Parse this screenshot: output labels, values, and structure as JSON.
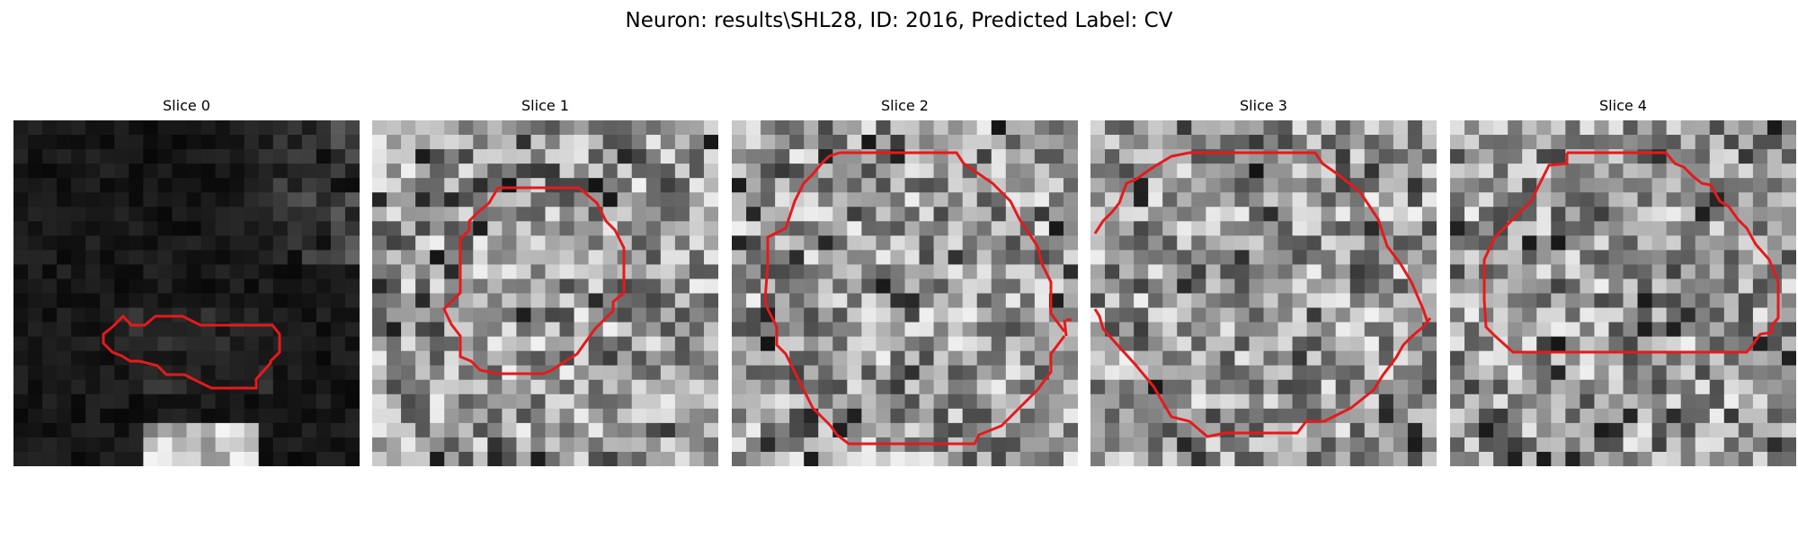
{
  "figure": {
    "title": "Neuron: results\\SHL28, ID: 2016, Predicted Label: CV"
  },
  "slices": [
    {
      "title": "Slice 0",
      "texture": "dark",
      "contour": "small-blob"
    },
    {
      "title": "Slice 1",
      "texture": "gray",
      "contour": "octagon"
    },
    {
      "title": "Slice 2",
      "texture": "gray",
      "contour": "octagon"
    },
    {
      "title": "Slice 3",
      "texture": "gray",
      "contour": "octagon"
    },
    {
      "title": "Slice 4",
      "texture": "gray",
      "contour": "octagon"
    }
  ],
  "colors": {
    "contour": "#e41a1c"
  }
}
